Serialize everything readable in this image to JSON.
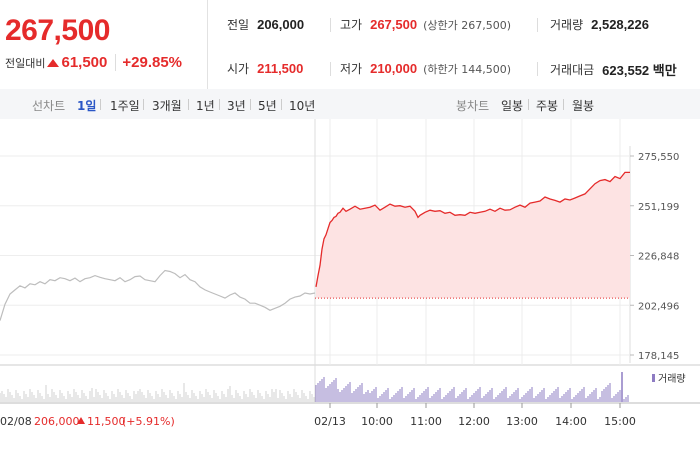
{
  "quote": {
    "price": "267,500",
    "change_label": "전일대비",
    "change": "61,500",
    "change_pct": "+29.85%"
  },
  "stats": {
    "prev_close_label": "전일",
    "prev_close": "206,000",
    "high_label": "고가",
    "high": "267,500",
    "high_note": "(상한가 267,500)",
    "volume_label": "거래량",
    "volume": "2,528,226",
    "open_label": "시가",
    "open": "211,500",
    "low_label": "저가",
    "low": "210,000",
    "low_note": "(하한가 144,500)",
    "amount_label": "거래대금",
    "amount": "623,552 백만"
  },
  "tabs": {
    "line_title": "선차트",
    "line": [
      "1일",
      "1주일",
      "3개월",
      "1년",
      "3년",
      "5년",
      "10년"
    ],
    "active": "1일",
    "candle_title": "봉차트",
    "candle": [
      "일봉",
      "주봉",
      "월봉"
    ]
  },
  "colors": {
    "up": "#e52b2b",
    "prev_day": "#bdbdbd",
    "volume": "#8e7cc3",
    "active_tab": "#2a56c6"
  },
  "chart_data": {
    "type": "line",
    "y_ticks": [
      "275,550",
      "251,199",
      "226,848",
      "202,496",
      "178,145"
    ],
    "ylim": [
      178145,
      275550
    ],
    "x_ticks": [
      "02/13",
      "10:00",
      "11:00",
      "12:00",
      "13:00",
      "14:00",
      "15:00"
    ],
    "prev_day_label": "02/08",
    "prev_day_close": "206,000",
    "prev_day_change": "11,500",
    "prev_day_pct": "(+5.91%)",
    "baseline": 206000,
    "volume_legend": "거래량",
    "series": [
      {
        "x": [
          0,
          5,
          10,
          15,
          20,
          25,
          30,
          35,
          40,
          45,
          50,
          55,
          60,
          65,
          70,
          75,
          80,
          85,
          90,
          95,
          100,
          105,
          110,
          115,
          120,
          125,
          130,
          135,
          140,
          145,
          150,
          155,
          160,
          165,
          170,
          175,
          180,
          185,
          190,
          195,
          200,
          205,
          210,
          215,
          220,
          225,
          230,
          235,
          240,
          245,
          250,
          255,
          260,
          265,
          270,
          275,
          280,
          285,
          290,
          295,
          300,
          305,
          310,
          315
        ],
        "y": [
          195000,
          203000,
          208000,
          210000,
          212000,
          211000,
          213000,
          212500,
          214000,
          213000,
          215000,
          214500,
          216000,
          215500,
          214500,
          215800,
          214000,
          215500,
          216000,
          217000,
          216200,
          215500,
          215000,
          214500,
          216000,
          214000,
          215000,
          216500,
          216800,
          215000,
          214500,
          214000,
          217000,
          219500,
          219000,
          218000,
          216000,
          217500,
          215000,
          214000,
          211500,
          210000,
          209000,
          208000,
          207000,
          206000,
          207500,
          208500,
          206500,
          205500,
          203500,
          203500,
          202500,
          201500,
          200000,
          201000,
          202000,
          203500,
          205500,
          206500,
          207000,
          208500,
          208000,
          208500
        ]
      },
      {
        "x": [
          316,
          318,
          320,
          322,
          324,
          326,
          328,
          330,
          332,
          334,
          336,
          338,
          340,
          343,
          346,
          350,
          355,
          360,
          365,
          370,
          375,
          380,
          385,
          390,
          395,
          400,
          405,
          410,
          415,
          418,
          420,
          425,
          430,
          435,
          440,
          445,
          450,
          455,
          460,
          465,
          470,
          475,
          480,
          485,
          490,
          495,
          500,
          505,
          510,
          515,
          520,
          525,
          530,
          535,
          540,
          545,
          550,
          555,
          560,
          565,
          570,
          575,
          580,
          585,
          590,
          595,
          600,
          605,
          610,
          615,
          620,
          625,
          630
        ],
        "y": [
          211500,
          217000,
          222000,
          230000,
          235000,
          237000,
          240000,
          243000,
          244000,
          245500,
          246000,
          247500,
          248000,
          250000,
          248500,
          249500,
          251000,
          249500,
          250000,
          250500,
          251500,
          249000,
          250500,
          252000,
          251000,
          251200,
          250500,
          251000,
          248500,
          245500,
          246500,
          248000,
          249000,
          248500,
          248800,
          247500,
          248000,
          246500,
          246800,
          246500,
          248000,
          247500,
          248000,
          248500,
          249500,
          248500,
          250000,
          249000,
          249200,
          250500,
          251500,
          250500,
          252500,
          253000,
          253500,
          255500,
          254500,
          253800,
          253000,
          254500,
          254000,
          255000,
          256000,
          257000,
          259500,
          262000,
          263500,
          264000,
          263000,
          265500,
          264500,
          267500,
          267500
        ]
      }
    ]
  }
}
